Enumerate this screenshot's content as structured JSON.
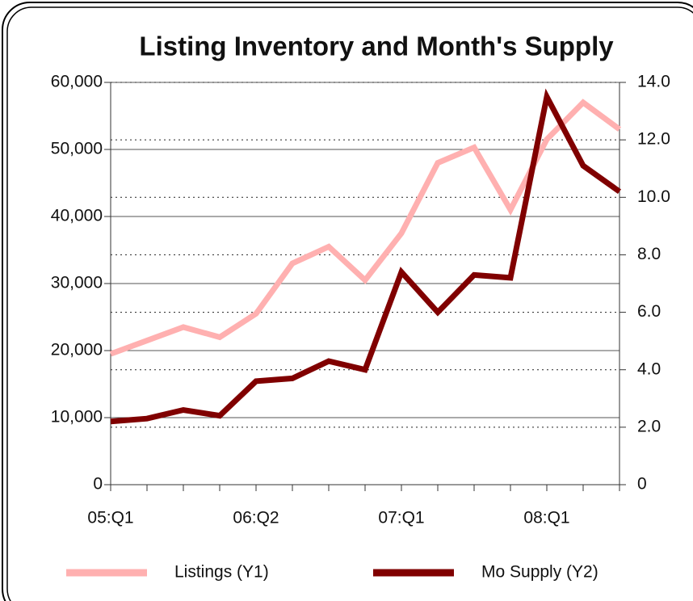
{
  "chart_data": {
    "type": "line",
    "title": "Listing Inventory and Month's Supply",
    "categories": [
      "05:Q1",
      null,
      null,
      null,
      "06:Q2",
      null,
      null,
      null,
      "07:Q1",
      null,
      null,
      null,
      "08:Q1",
      null,
      null
    ],
    "series": [
      {
        "name": "Listings (Y1)",
        "color": "#ffb0b0",
        "values": [
          19500,
          21500,
          23500,
          22000,
          25500,
          33000,
          35500,
          30500,
          37500,
          48000,
          50300,
          41000,
          51500,
          57000,
          53000
        ]
      },
      {
        "name": "Mo Supply (Y2)",
        "color": "#800000",
        "axis": "y2",
        "values": [
          2.2,
          2.3,
          2.6,
          2.4,
          3.6,
          3.7,
          4.3,
          4.0,
          7.4,
          6.0,
          7.3,
          7.2,
          13.5,
          11.1,
          10.2
        ]
      }
    ],
    "ylim": [
      0,
      60000
    ],
    "yticks": [
      0,
      {
        "value": 10000,
        "label": "10,000"
      },
      {
        "value": 20000,
        "label": "20,000"
      },
      {
        "value": 30000,
        "label": "30,000"
      },
      {
        "value": 40000,
        "label": "40,000"
      },
      {
        "value": 50000,
        "label": "50,000"
      },
      {
        "value": 60000,
        "label": "60,000"
      }
    ],
    "y2lim": [
      0,
      14
    ],
    "y2ticks": [
      0,
      {
        "value": 2,
        "label": "2.0"
      },
      {
        "value": 4,
        "label": "4.0"
      },
      {
        "value": 6,
        "label": "6.0"
      },
      {
        "value": 8,
        "label": "8.0"
      },
      {
        "value": 10,
        "label": "10.0"
      },
      {
        "value": 12,
        "label": "12.0"
      },
      {
        "value": 14,
        "label": "14.0"
      }
    ],
    "grid": true,
    "legend": "bottom"
  }
}
